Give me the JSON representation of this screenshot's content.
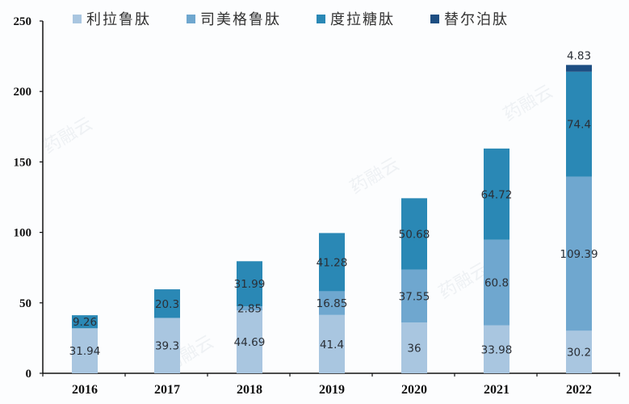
{
  "chart_data": {
    "type": "bar",
    "stacked": true,
    "title": "",
    "xlabel": "",
    "ylabel": "",
    "ylim": [
      0,
      250
    ],
    "yticks": [
      0,
      50,
      100,
      150,
      200,
      250
    ],
    "grid": false,
    "legend_position": "top",
    "categories": [
      "2016",
      "2017",
      "2018",
      "2019",
      "2020",
      "2021",
      "2022"
    ],
    "series": [
      {
        "name": "利拉鲁肽",
        "color": "#a9c6e0",
        "values": [
          31.94,
          39.3,
          44.69,
          41.4,
          36,
          33.98,
          30.2
        ]
      },
      {
        "name": "司美格鲁肽",
        "color": "#6fa7cf",
        "values": [
          0,
          0,
          2.85,
          16.85,
          37.55,
          60.8,
          109.39
        ]
      },
      {
        "name": "度拉糖肽",
        "color": "#2a88b5",
        "values": [
          9.26,
          20.3,
          31.99,
          41.28,
          50.68,
          64.72,
          74.4
        ]
      },
      {
        "name": "替尔泊肽",
        "color": "#1d4e82",
        "values": [
          0,
          0,
          0,
          0,
          0,
          0,
          4.83
        ]
      }
    ],
    "data_labels": [
      [
        "31.94",
        "39.3",
        "44.69",
        "41.4",
        "36",
        "33.98",
        "30.2"
      ],
      [
        "",
        "",
        "2.85",
        "16.85",
        "37.55",
        "60.8",
        "109.39"
      ],
      [
        "9.26",
        "20.3",
        "31.99",
        "41.28",
        "50.68",
        "64.72",
        "74.4"
      ],
      [
        "",
        "",
        "",
        "",
        "",
        "",
        "4.83"
      ]
    ]
  },
  "legend": {
    "items": [
      {
        "label": "利拉鲁肽",
        "color": "#a9c6e0"
      },
      {
        "label": "司美格鲁肽",
        "color": "#6fa7cf"
      },
      {
        "label": "度拉糖肽",
        "color": "#2a88b5"
      },
      {
        "label": "替尔泊肽",
        "color": "#1d4e82"
      }
    ]
  },
  "watermark": "药融云"
}
